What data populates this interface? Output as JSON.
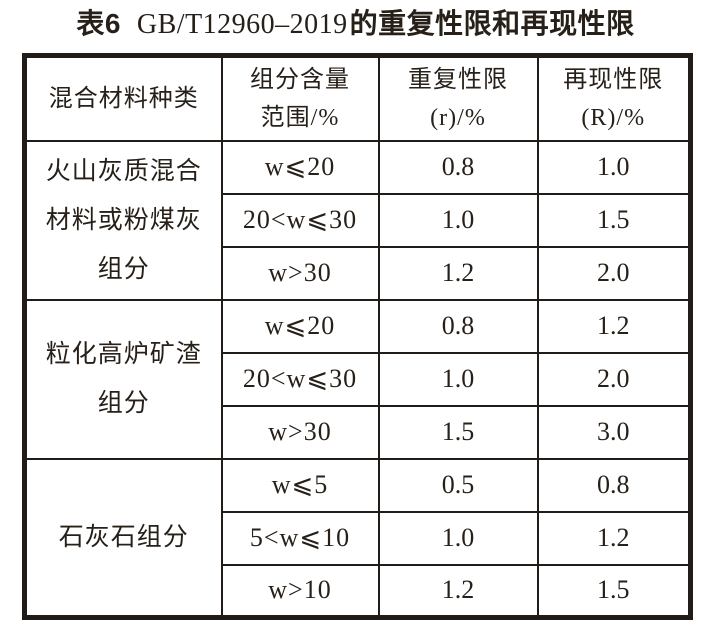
{
  "title": {
    "prefix": "表6",
    "standard": "GB/T12960–2019",
    "suffix": "的重复性限和再现性限"
  },
  "table": {
    "headers": {
      "material": {
        "line1": "混合材料种类"
      },
      "range": {
        "line1": "组分含量",
        "line2": "范围/%"
      },
      "r": {
        "line1": "重复性限",
        "line2": "(r)/%"
      },
      "R": {
        "line1": "再现性限",
        "line2": "(R)/%"
      }
    },
    "groups": [
      {
        "material": "火山灰质混合材料或粉煤灰组分",
        "material_lines": {
          "0": "火山灰质混合",
          "1": "材料或粉煤灰",
          "2": "组分"
        },
        "rows": [
          {
            "range": "w⩽20",
            "r": "0.8",
            "R": "1.0"
          },
          {
            "range": "20<w⩽30",
            "r": "1.0",
            "R": "1.5"
          },
          {
            "range": "w>30",
            "r": "1.2",
            "R": "2.0"
          }
        ]
      },
      {
        "material": "粒化高炉矿渣组分",
        "material_lines": {
          "0": "粒化高炉矿渣",
          "1": "组分"
        },
        "rows": [
          {
            "range": "w⩽20",
            "r": "0.8",
            "R": "1.2"
          },
          {
            "range": "20<w⩽30",
            "r": "1.0",
            "R": "2.0"
          },
          {
            "range": "w>30",
            "r": "1.5",
            "R": "3.0"
          }
        ]
      },
      {
        "material": "石灰石组分",
        "material_lines": {
          "0": "石灰石组分"
        },
        "rows": [
          {
            "range": "w⩽5",
            "r": "0.5",
            "R": "0.8"
          },
          {
            "range": "5<w⩽10",
            "r": "1.0",
            "R": "1.2"
          },
          {
            "range": "w>10",
            "r": "1.2",
            "R": "1.5"
          }
        ]
      }
    ]
  },
  "colors": {
    "text": "#272019",
    "border": "#221c18",
    "background": "#ffffff"
  }
}
